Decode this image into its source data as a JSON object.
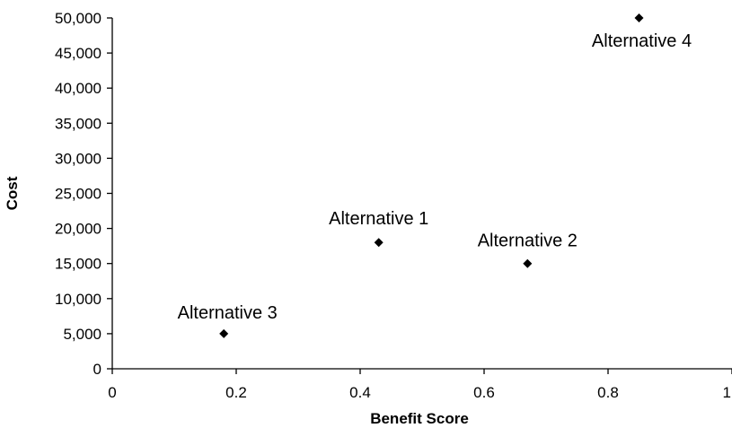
{
  "chart_data": {
    "type": "scatter",
    "title": "",
    "xlabel": "Benefit Score",
    "ylabel": "Cost",
    "xlim": [
      0,
      1
    ],
    "ylim": [
      0,
      50000
    ],
    "x_ticks": [
      0,
      0.2,
      0.4,
      0.6,
      0.8,
      1
    ],
    "x_tick_labels": [
      "0",
      "0.2",
      "0.4",
      "0.6",
      "0.8",
      "1"
    ],
    "y_ticks": [
      0,
      5000,
      10000,
      15000,
      20000,
      25000,
      30000,
      35000,
      40000,
      45000,
      50000
    ],
    "y_tick_labels": [
      "0",
      "5,000",
      "10,000",
      "15,000",
      "20,000",
      "25,000",
      "30,000",
      "35,000",
      "40,000",
      "45,000",
      "50,000"
    ],
    "grid": false,
    "legend": "none",
    "marker": "diamond",
    "marker_color": "#000000",
    "points": [
      {
        "label": "Alternative 1",
        "x": 0.43,
        "y": 18000
      },
      {
        "label": "Alternative 2",
        "x": 0.67,
        "y": 15000
      },
      {
        "label": "Alternative 3",
        "x": 0.18,
        "y": 5000
      },
      {
        "label": "Alternative 4",
        "x": 0.85,
        "y": 50000
      }
    ]
  }
}
